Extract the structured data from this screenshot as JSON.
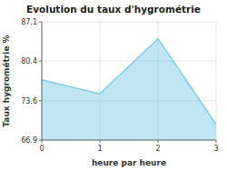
{
  "chart_data": {
    "type": "area",
    "title": "Evolution du taux d'hygrométrie",
    "xlabel": "heure par heure",
    "ylabel": "Taux hygrométrie %",
    "x": [
      0,
      1,
      2,
      3
    ],
    "values": [
      77.2,
      74.8,
      84.2,
      69.6
    ],
    "color": "#7dcde8",
    "xlim": [
      0,
      3
    ],
    "ylim": [
      66.9,
      87.1
    ],
    "xticks": [
      0,
      1,
      2,
      3
    ],
    "yticks": [
      66.9,
      73.6,
      80.4,
      87.1
    ],
    "grid": true
  }
}
